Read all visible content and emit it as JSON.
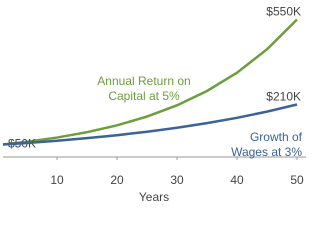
{
  "chart_data": {
    "type": "line",
    "x": [
      1,
      5,
      10,
      15,
      20,
      25,
      30,
      35,
      40,
      45,
      50
    ],
    "xlim": [
      1,
      51.5
    ],
    "xticks": [
      10,
      20,
      30,
      40,
      50
    ],
    "ylim": [
      0,
      600
    ],
    "xlabel": "Years",
    "series": [
      {
        "name": "Annual Return on Capital at 5%",
        "color": "#6b9e3e",
        "values": [
          50,
          60.8,
          77.7,
          99.2,
          126.6,
          161.8,
          206.7,
          264,
          337,
          431,
          550
        ],
        "value_labels": [
          "$50K",
          null,
          null,
          null,
          null,
          null,
          null,
          null,
          null,
          null,
          "$550K"
        ]
      },
      {
        "name": "Growth of Wages at 3%",
        "color": "#3b6396",
        "values": [
          50,
          56.2,
          65.1,
          75.4,
          87.2,
          101,
          116.9,
          135.4,
          156.7,
          181.4,
          210
        ],
        "value_labels": [
          null,
          null,
          null,
          null,
          null,
          null,
          null,
          null,
          null,
          null,
          "$210K"
        ]
      }
    ]
  }
}
